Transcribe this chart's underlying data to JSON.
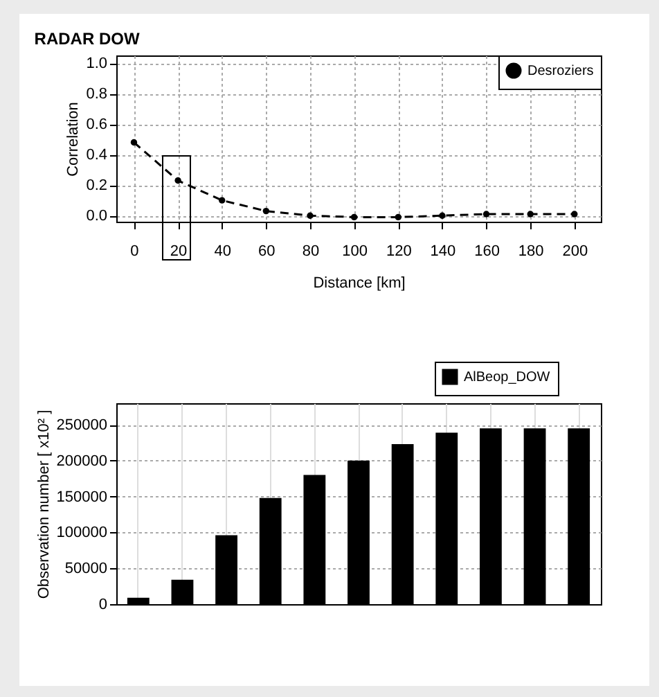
{
  "chart_data": [
    {
      "type": "line",
      "title": "RADAR DOW",
      "xlabel": "Distance [km]",
      "ylabel": "Correlation",
      "x": [
        0,
        20,
        40,
        60,
        80,
        100,
        120,
        140,
        160,
        180,
        200
      ],
      "series": [
        {
          "name": "Desroziers",
          "color": "#000000",
          "values": [
            0.48,
            0.23,
            0.1,
            0.03,
            0.0,
            -0.01,
            -0.01,
            0.0,
            0.01,
            0.01,
            0.01
          ]
        }
      ],
      "xlim": [
        -8,
        212
      ],
      "xticks": [
        0,
        20,
        40,
        60,
        80,
        100,
        120,
        140,
        160,
        180,
        200
      ],
      "ylim": [
        -0.04,
        1.05
      ],
      "yticks": [
        {
          "value": 0,
          "label": "0.0"
        },
        {
          "value": 0.2,
          "label": "0.2"
        },
        {
          "value": 0.4,
          "label": "0.4"
        },
        {
          "value": 0.6,
          "label": "0.6"
        },
        {
          "value": 0.8,
          "label": "0.8"
        },
        {
          "value": 1,
          "label": "1.0"
        }
      ],
      "grid": true,
      "legend": "top right",
      "marker": "circle",
      "line_style": "dashed"
    },
    {
      "type": "bar",
      "ylabel": "Observation number [ x10² ]",
      "categories": [
        null,
        null,
        null,
        null,
        null,
        null,
        null,
        null,
        null,
        null,
        null
      ],
      "series": [
        {
          "name": "AlBeop_DOW",
          "color": "#000000",
          "values": [
            9000,
            34000,
            96000,
            148000,
            180000,
            200000,
            223000,
            239000,
            245000,
            245000,
            245000
          ]
        }
      ],
      "ylim": [
        0,
        280000
      ],
      "yticks": [
        0,
        50000,
        100000,
        150000,
        200000,
        250000
      ],
      "grid": true,
      "legend": "top right",
      "tick_labels": "y"
    }
  ]
}
